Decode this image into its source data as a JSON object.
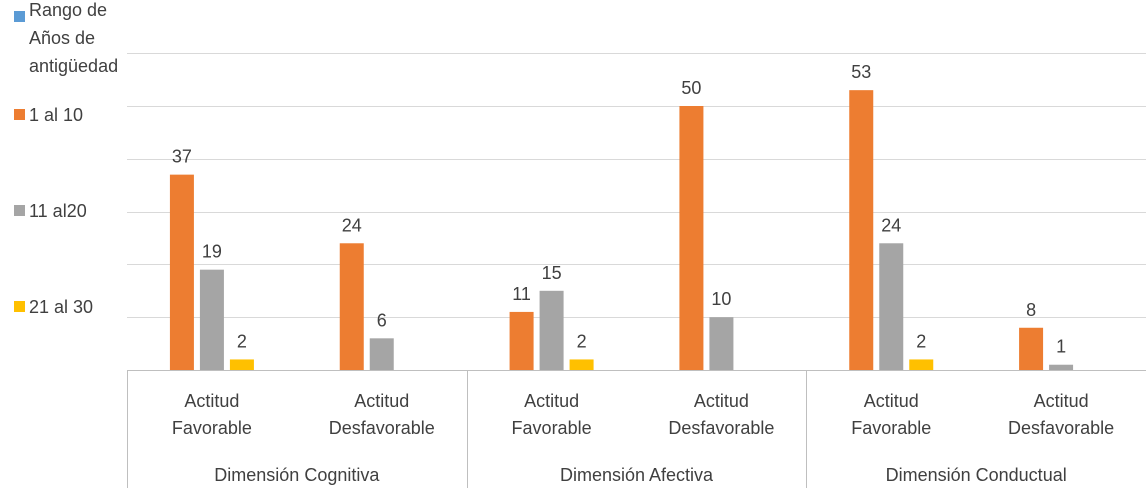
{
  "chart_data": {
    "type": "bar",
    "title": "",
    "xlabel": "",
    "ylabel": "",
    "ylim": [
      0,
      60
    ],
    "grid": true,
    "legend_position": "left",
    "groups": [
      "Dimensión Cognitiva",
      "Dimensión Afectiva",
      "Dimensión Conductual"
    ],
    "categories": [
      [
        "Actitud",
        "Favorable"
      ],
      [
        "Actitud",
        "Desfavorable"
      ],
      [
        "Actitud",
        "Favorable"
      ],
      [
        "Actitud",
        "Desfavorable"
      ],
      [
        "Actitud",
        "Favorable"
      ],
      [
        "Actitud",
        "Desfavorable"
      ]
    ],
    "series": [
      {
        "name": "Rango de Años de antigüedad",
        "color": "#5B9BD5",
        "values": [
          null,
          null,
          null,
          null,
          null,
          null
        ]
      },
      {
        "name": "1 al 10",
        "color": "#ED7D31",
        "values": [
          37,
          24,
          11,
          50,
          53,
          8
        ]
      },
      {
        "name": "11 al20",
        "color": "#A5A5A5",
        "values": [
          19,
          6,
          15,
          10,
          24,
          1
        ]
      },
      {
        "name": "21 al 30",
        "color": "#FFC000",
        "values": [
          2,
          null,
          2,
          null,
          2,
          null
        ]
      }
    ]
  }
}
